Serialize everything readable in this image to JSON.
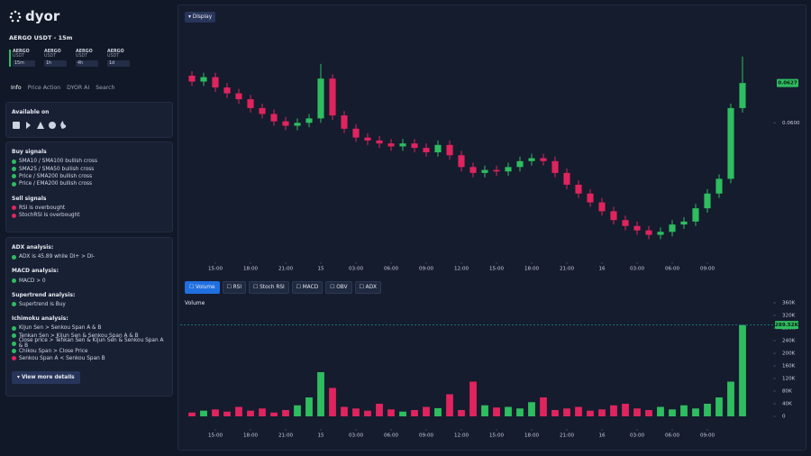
{
  "header": {
    "logo": "dyor",
    "pair": "AERGO USDT - 15m"
  },
  "timeframes": [
    {
      "pair": "AERGO",
      "quote": "USDT",
      "interval": "15m",
      "active": true
    },
    {
      "pair": "AERGO",
      "quote": "USDT",
      "interval": "1h",
      "active": false
    },
    {
      "pair": "AERGO",
      "quote": "USDT",
      "interval": "4h",
      "active": false
    },
    {
      "pair": "AERGO",
      "quote": "USDT",
      "interval": "1d",
      "active": false
    }
  ],
  "tabs": [
    "Info",
    "Price Action",
    "DYOR AI",
    "Search"
  ],
  "available_on": {
    "title": "Available on"
  },
  "signals": [
    {
      "title": "Buy signals",
      "items": [
        {
          "text": "SMA10 / SMA100 bullish cross",
          "color": "#2ebd5f"
        },
        {
          "text": "SMA25 / SMA50 bullish cross",
          "color": "#2ebd5f"
        },
        {
          "text": "Price / SMA200 bullish cross",
          "color": "#2ebd5f"
        },
        {
          "text": "Price / EMA200 bullish cross",
          "color": "#2ebd5f"
        }
      ]
    },
    {
      "title": "Sell signals",
      "items": [
        {
          "text": "RSI is overbought",
          "color": "#e0245e"
        },
        {
          "text": "StochRSI is overbought",
          "color": "#e0245e"
        }
      ]
    }
  ],
  "analysis": [
    {
      "title": "ADX analysis:",
      "items": [
        {
          "text": "ADX is 45.89 while DI+ > DI-",
          "color": "#2ebd5f"
        }
      ]
    },
    {
      "title": "MACD analysis:",
      "items": [
        {
          "text": "MACD > 0",
          "color": "#2ebd5f"
        }
      ]
    },
    {
      "title": "Supertrend analysis:",
      "items": [
        {
          "text": "Supertrend is Buy",
          "color": "#2ebd5f"
        }
      ]
    },
    {
      "title": "Ichimoku analysis:",
      "items": [
        {
          "text": "Kijun Sen > Senkou Span A & B",
          "color": "#2ebd5f"
        },
        {
          "text": "Tenkan Sen > Kijun Sen & Senkou Span A & B",
          "color": "#2ebd5f"
        },
        {
          "text": "Close price > Tenkan Sen & Kijun Sen & Senkou Span A & B",
          "color": "#2ebd5f"
        },
        {
          "text": "Chikou Span > Close Price",
          "color": "#2ebd5f"
        },
        {
          "text": "Senkou Span A < Senkou Span B",
          "color": "#e0245e"
        }
      ]
    }
  ],
  "more_button": "View more details",
  "display_button": "Display",
  "indicators": [
    {
      "name": "Volume",
      "active": true
    },
    {
      "name": "RSI",
      "active": false
    },
    {
      "name": "Stoch RSI",
      "active": false
    },
    {
      "name": "MACD",
      "active": false
    },
    {
      "name": "OBV",
      "active": false
    },
    {
      "name": "ADX",
      "active": false
    }
  ],
  "volume_label": "Volume",
  "chart_data": [
    {
      "type": "candlestick",
      "up_color": "#2ebd5f",
      "down_color": "#e0245e",
      "x": [
        -2,
        -1,
        0,
        1,
        2,
        3,
        4,
        5,
        6,
        7,
        8,
        9,
        10,
        11,
        12,
        13,
        14,
        15,
        16,
        17,
        18,
        19,
        20,
        21,
        22,
        23,
        24,
        25,
        26,
        27,
        28,
        29,
        30,
        31,
        32,
        33,
        34,
        35,
        36,
        37,
        38,
        39,
        40,
        41,
        42,
        43,
        44,
        45
      ],
      "open": [
        0.0632,
        0.0628,
        0.0631,
        0.0624,
        0.062,
        0.0616,
        0.061,
        0.0606,
        0.0601,
        0.0598,
        0.06,
        0.0603,
        0.063,
        0.0605,
        0.0596,
        0.059,
        0.0588,
        0.0586,
        0.0584,
        0.0586,
        0.0583,
        0.058,
        0.0585,
        0.0578,
        0.057,
        0.0566,
        0.0568,
        0.0567,
        0.057,
        0.0574,
        0.0576,
        0.0574,
        0.0566,
        0.0558,
        0.0552,
        0.0546,
        0.054,
        0.0534,
        0.053,
        0.0527,
        0.0524,
        0.0526,
        0.0531,
        0.0533,
        0.0542,
        0.0552,
        0.0562,
        0.061
      ],
      "high": [
        0.0635,
        0.0634,
        0.0634,
        0.0627,
        0.0623,
        0.0619,
        0.0613,
        0.0609,
        0.0604,
        0.0603,
        0.0606,
        0.064,
        0.0633,
        0.0608,
        0.0599,
        0.0593,
        0.0591,
        0.0589,
        0.0589,
        0.0589,
        0.0586,
        0.0588,
        0.0588,
        0.0581,
        0.0573,
        0.0571,
        0.0571,
        0.0573,
        0.0577,
        0.0579,
        0.0579,
        0.0577,
        0.0569,
        0.0561,
        0.0555,
        0.0549,
        0.0543,
        0.0537,
        0.0533,
        0.053,
        0.0529,
        0.0534,
        0.0536,
        0.0545,
        0.0555,
        0.0565,
        0.0613,
        0.0645
      ],
      "low": [
        0.0625,
        0.0625,
        0.0621,
        0.0617,
        0.0613,
        0.0607,
        0.0603,
        0.0598,
        0.0595,
        0.0595,
        0.0597,
        0.06,
        0.0602,
        0.0593,
        0.0587,
        0.0585,
        0.0583,
        0.0581,
        0.0581,
        0.058,
        0.0577,
        0.0577,
        0.0575,
        0.0567,
        0.0563,
        0.0563,
        0.0564,
        0.0564,
        0.0567,
        0.0571,
        0.0571,
        0.0563,
        0.0555,
        0.0549,
        0.0543,
        0.0537,
        0.0531,
        0.0527,
        0.0524,
        0.0521,
        0.0521,
        0.0523,
        0.0528,
        0.053,
        0.0539,
        0.0549,
        0.0559,
        0.0607
      ],
      "close": [
        0.0628,
        0.0631,
        0.0624,
        0.062,
        0.0616,
        0.061,
        0.0606,
        0.0601,
        0.0598,
        0.06,
        0.0603,
        0.063,
        0.0605,
        0.0596,
        0.059,
        0.0588,
        0.0586,
        0.0584,
        0.0586,
        0.0583,
        0.058,
        0.0585,
        0.0578,
        0.057,
        0.0566,
        0.0568,
        0.0567,
        0.057,
        0.0574,
        0.0576,
        0.0574,
        0.0566,
        0.0558,
        0.0552,
        0.0546,
        0.054,
        0.0534,
        0.053,
        0.0527,
        0.0524,
        0.0526,
        0.0531,
        0.0533,
        0.0542,
        0.0552,
        0.0562,
        0.061,
        0.0627
      ],
      "xlim": [
        -3,
        47
      ],
      "ylim": [
        0.0506,
        0.0665
      ],
      "xticks": [
        {
          "value": 0,
          "label": "15:00"
        },
        {
          "value": 3,
          "label": "18:00"
        },
        {
          "value": 6,
          "label": "21:00"
        },
        {
          "value": 9,
          "label": "15"
        },
        {
          "value": 12,
          "label": "03:00"
        },
        {
          "value": 15,
          "label": "06:00"
        },
        {
          "value": 18,
          "label": "09:00"
        },
        {
          "value": 21,
          "label": "12:00"
        },
        {
          "value": 24,
          "label": "15:00"
        },
        {
          "value": 27,
          "label": "18:00"
        },
        {
          "value": 30,
          "label": "21:00"
        },
        {
          "value": 33,
          "label": "16"
        },
        {
          "value": 36,
          "label": "03:00"
        },
        {
          "value": 39,
          "label": "06:00"
        },
        {
          "value": 42,
          "label": "09:00"
        }
      ],
      "yticks": [
        {
          "value": 0.06,
          "label": "0.0600"
        }
      ],
      "last_value": 0.0627
    },
    {
      "type": "bar",
      "up_color": "#2ebd5f",
      "down_color": "#e0245e",
      "line_color": "#1fa39a",
      "x": [
        -2,
        -1,
        0,
        1,
        2,
        3,
        4,
        5,
        6,
        7,
        8,
        9,
        10,
        11,
        12,
        13,
        14,
        15,
        16,
        17,
        18,
        19,
        20,
        21,
        22,
        23,
        24,
        25,
        26,
        27,
        28,
        29,
        30,
        31,
        32,
        33,
        34,
        35,
        36,
        37,
        38,
        39,
        40,
        41,
        42,
        43,
        44,
        45
      ],
      "values": [
        12000,
        18000,
        22000,
        15000,
        30000,
        18000,
        25000,
        12000,
        20000,
        35000,
        60000,
        140000,
        90000,
        30000,
        25000,
        18000,
        40000,
        22000,
        15000,
        20000,
        30000,
        26000,
        70000,
        20000,
        110000,
        35000,
        28000,
        30000,
        25000,
        45000,
        60000,
        20000,
        25000,
        30000,
        18000,
        22000,
        35000,
        40000,
        25000,
        20000,
        30000,
        22000,
        35000,
        25000,
        40000,
        60000,
        110000,
        289520
      ],
      "xlim": [
        -3,
        47
      ],
      "ylim": [
        0,
        360000
      ],
      "xticks": [
        {
          "value": 0,
          "label": "15:00"
        },
        {
          "value": 3,
          "label": "18:00"
        },
        {
          "value": 6,
          "label": "21:00"
        },
        {
          "value": 9,
          "label": "15"
        },
        {
          "value": 12,
          "label": "03:00"
        },
        {
          "value": 15,
          "label": "06:00"
        },
        {
          "value": 18,
          "label": "09:00"
        },
        {
          "value": 21,
          "label": "12:00"
        },
        {
          "value": 24,
          "label": "15:00"
        },
        {
          "value": 27,
          "label": "18:00"
        },
        {
          "value": 30,
          "label": "21:00"
        },
        {
          "value": 33,
          "label": "16"
        },
        {
          "value": 36,
          "label": "03:00"
        },
        {
          "value": 39,
          "label": "06:00"
        },
        {
          "value": 42,
          "label": "09:00"
        }
      ],
      "yticks": [
        0,
        {
          "value": 40000,
          "label": "40K"
        },
        {
          "value": 80000,
          "label": "80K"
        },
        {
          "value": 120000,
          "label": "120K"
        },
        {
          "value": 160000,
          "label": "160K"
        },
        {
          "value": 200000,
          "label": "200K"
        },
        {
          "value": 240000,
          "label": "240K"
        },
        {
          "value": 280000,
          "label": "280K"
        },
        {
          "value": 320000,
          "label": "320K"
        },
        {
          "value": 360000,
          "label": "360K"
        }
      ],
      "last_value": {
        "value": 289520,
        "label": "289.52K"
      }
    }
  ]
}
